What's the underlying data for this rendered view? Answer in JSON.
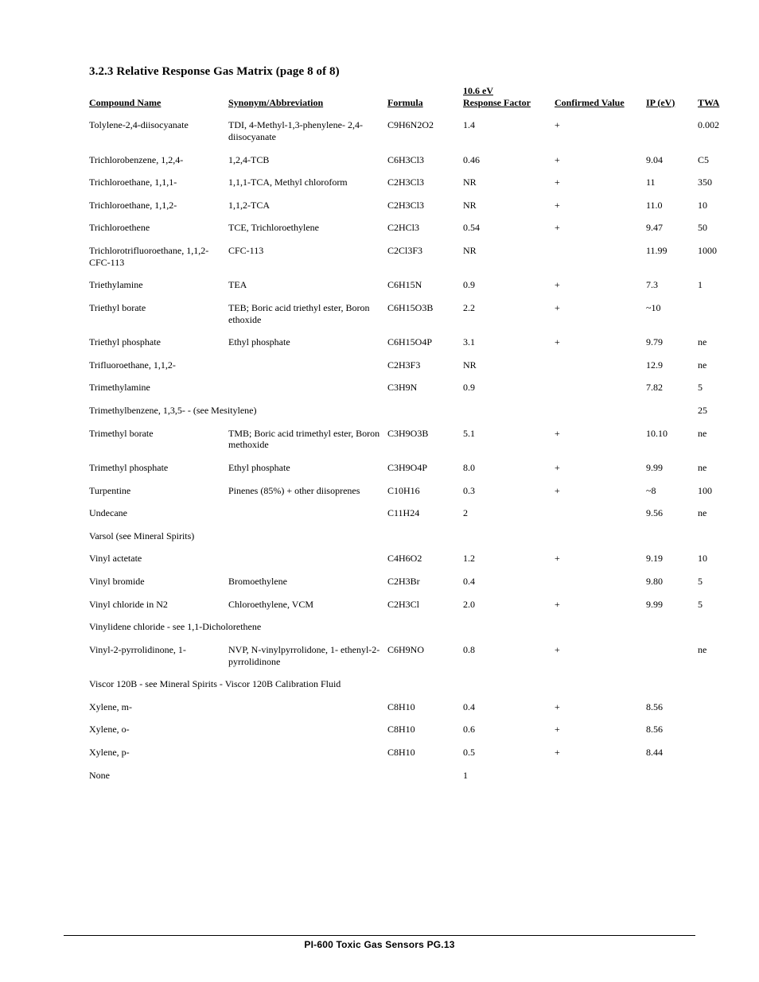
{
  "section_title": "3.2.3  Relative Response Gas Matrix (page 8 of 8)",
  "columns": {
    "name": "Compound Name",
    "synonym": "Synonym/Abbreviation",
    "formula": "Formula",
    "rf": "10.6 eV\nResponse Factor",
    "conf": "Confirmed Value",
    "ip": "IP (eV)",
    "twa": "TWA"
  },
  "rows": [
    {
      "name": "Tolylene-2,4-diisocyanate",
      "synonym": "TDI, 4-Methyl-1,3-phenylene- 2,4-diisocyanate",
      "formula": "C9H6N2O2",
      "rf": "1.4",
      "conf": "+",
      "ip": "",
      "twa": "0.002"
    },
    {
      "name": "Trichlorobenzene, 1,2,4-",
      "synonym": "1,2,4-TCB",
      "formula": "C6H3Cl3",
      "rf": "0.46",
      "conf": "+",
      "ip": "9.04",
      "twa": "C5"
    },
    {
      "name": "Trichloroethane, 1,1,1-",
      "synonym": "1,1,1-TCA, Methyl chloroform",
      "formula": "C2H3Cl3",
      "rf": "NR",
      "conf": "+",
      "ip": "11",
      "twa": "350"
    },
    {
      "name": "Trichloroethane, 1,1,2-",
      "synonym": "1,1,2-TCA",
      "formula": "C2H3Cl3",
      "rf": "NR",
      "conf": "+",
      "ip": "11.0",
      "twa": "10"
    },
    {
      "name": "Trichloroethene",
      "synonym": "TCE, Trichloroethylene",
      "formula": "C2HCl3",
      "rf": "0.54",
      "conf": "+",
      "ip": "9.47",
      "twa": "50"
    },
    {
      "name": "Trichlorotrifluoroethane, 1,1,2- CFC-113",
      "synonym": "CFC-113",
      "formula": "C2Cl3F3",
      "rf": "NR",
      "conf": "",
      "ip": "11.99",
      "twa": "1000"
    },
    {
      "name": "Triethylamine",
      "synonym": "TEA",
      "formula": "C6H15N",
      "rf": "0.9",
      "conf": "+",
      "ip": "7.3",
      "twa": "1"
    },
    {
      "name": "Triethyl borate",
      "synonym": "TEB; Boric acid triethyl ester, Boron ethoxide",
      "formula": "C6H15O3B",
      "rf": "2.2",
      "conf": "+",
      "ip": "~10",
      "twa": ""
    },
    {
      "name": "Triethyl phosphate",
      "synonym": "Ethyl phosphate",
      "formula": "C6H15O4P",
      "rf": "3.1",
      "conf": "+",
      "ip": "9.79",
      "twa": "ne"
    },
    {
      "name": "Trifluoroethane, 1,1,2-",
      "synonym": "",
      "formula": "C2H3F3",
      "rf": "NR",
      "conf": "",
      "ip": "12.9",
      "twa": "ne"
    },
    {
      "name": "Trimethylamine",
      "synonym": "",
      "formula": "C3H9N",
      "rf": "0.9",
      "conf": "",
      "ip": "7.82",
      "twa": "5"
    },
    {
      "name": "Trimethylbenzene, 1,3,5- - (see Mesitylene)",
      "span": true,
      "twa": "25"
    },
    {
      "name": "Trimethyl borate",
      "synonym": "TMB; Boric acid trimethyl ester, Boron methoxide",
      "formula": "C3H9O3B",
      "rf": "5.1",
      "conf": "+",
      "ip": "10.10",
      "twa": "ne"
    },
    {
      "name": "Trimethyl phosphate",
      "synonym": "Ethyl phosphate",
      "formula": "C3H9O4P",
      "rf": "8.0",
      "conf": "+",
      "ip": "9.99",
      "twa": "ne"
    },
    {
      "name": "Turpentine",
      "synonym": "Pinenes (85%) + other diisoprenes",
      "formula": "C10H16",
      "rf": "0.3",
      "conf": "+",
      "ip": "~8",
      "twa": "100"
    },
    {
      "name": "Undecane",
      "synonym": "",
      "formula": "C11H24",
      "rf": "2",
      "conf": "",
      "ip": "9.56",
      "twa": "ne"
    },
    {
      "name": "Varsol (see Mineral Spirits)",
      "span": true,
      "twa": ""
    },
    {
      "name": "Vinyl actetate",
      "synonym": "",
      "formula": "C4H6O2",
      "rf": "1.2",
      "conf": "+",
      "ip": "9.19",
      "twa": "10"
    },
    {
      "name": "Vinyl bromide",
      "synonym": "Bromoethylene",
      "formula": "C2H3Br",
      "rf": "0.4",
      "conf": "",
      "ip": "9.80",
      "twa": "5"
    },
    {
      "name": "Vinyl chloride in N2",
      "synonym": "Chloroethylene, VCM",
      "formula": "C2H3Cl",
      "rf": "2.0",
      "conf": "+",
      "ip": "9.99",
      "twa": "5"
    },
    {
      "name": "Vinylidene chloride - see 1,1-Dicholorethene",
      "span": true,
      "twa": ""
    },
    {
      "name": "Vinyl-2-pyrrolidinone, 1-",
      "synonym": "NVP, N-vinylpyrrolidone, 1- ethenyl-2-pyrrolidinone",
      "formula": "C6H9NO",
      "rf": "0.8",
      "conf": "+",
      "ip": "",
      "twa": "ne"
    },
    {
      "name": "Viscor 120B - see Mineral Spirits - Viscor 120B Calibration Fluid",
      "span": true,
      "twa": ""
    },
    {
      "name": "Xylene, m-",
      "synonym": "",
      "formula": "C8H10",
      "rf": "0.4",
      "conf": "+",
      "ip": "8.56",
      "twa": ""
    },
    {
      "name": "Xylene, o-",
      "synonym": "",
      "formula": "C8H10",
      "rf": "0.6",
      "conf": "+",
      "ip": "8.56",
      "twa": ""
    },
    {
      "name": "Xylene, p-",
      "synonym": "",
      "formula": "C8H10",
      "rf": "0.5",
      "conf": "+",
      "ip": "8.44",
      "twa": ""
    },
    {
      "name": "None",
      "synonym": "",
      "formula": "",
      "rf": "1",
      "conf": "",
      "ip": "",
      "twa": ""
    }
  ],
  "footer": "PI-600 Toxic Gas Sensors   PG.13"
}
